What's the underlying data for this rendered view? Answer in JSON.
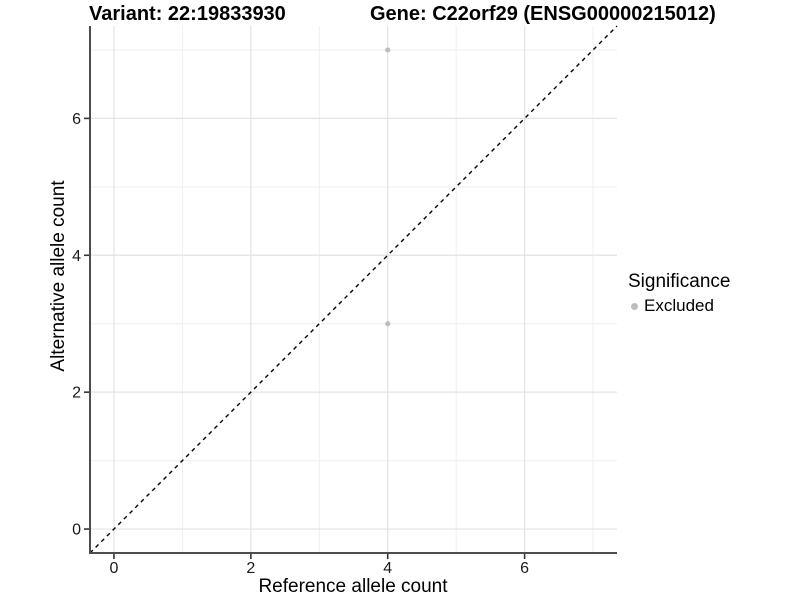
{
  "chart_data": {
    "type": "scatter",
    "title_left": "Variant: 22:19833930",
    "title_right": "Gene: C22orf29 (ENSG00000215012)",
    "xlabel": "Reference allele count",
    "ylabel": "Alternative allele count",
    "xlim": [
      -0.35,
      7.35
    ],
    "ylim": [
      -0.35,
      7.35
    ],
    "x_major_ticks": [
      0,
      2,
      4,
      6
    ],
    "y_major_ticks": [
      0,
      2,
      4,
      6
    ],
    "x_minor_gridlines": [
      1,
      3,
      5,
      7
    ],
    "y_minor_gridlines": [
      1,
      3,
      5,
      7
    ],
    "grid": "major+minor",
    "reference_line": {
      "type": "identity y=x",
      "style": "dashed",
      "color": "#000000"
    },
    "series": [
      {
        "name": "Excluded",
        "color": "#bdbdbd",
        "points": [
          {
            "x": 4,
            "y": 7
          },
          {
            "x": 4,
            "y": 3
          }
        ]
      }
    ],
    "legend": {
      "title": "Significance",
      "position": "right",
      "entries": [
        {
          "label": "Excluded",
          "color": "#bdbdbd"
        }
      ]
    },
    "colors": {
      "grid_major": "#e3e3e3",
      "grid_minor": "#efefef",
      "axis_line": "#4d4d4d",
      "tick_mark": "#333333",
      "tick_label": "#1a1a1a",
      "background": "#ffffff"
    }
  }
}
